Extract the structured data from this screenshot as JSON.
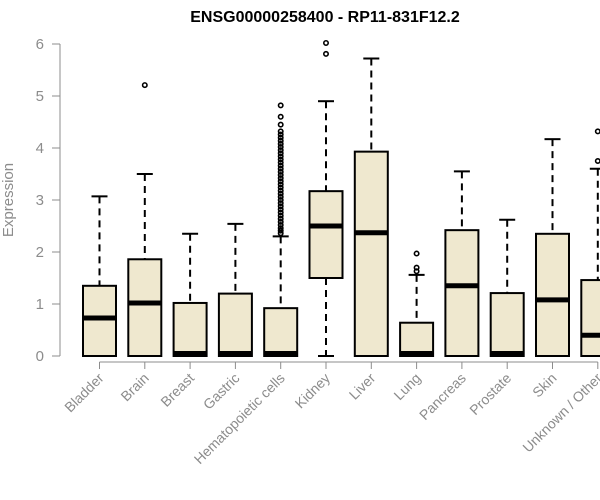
{
  "chart_data": {
    "type": "boxplot",
    "title": "ENSG00000258400 - RP11-831F12.2",
    "xlabel": "",
    "ylabel": "Expression",
    "ylim": [
      0,
      6
    ],
    "yticks": [
      0,
      1,
      2,
      3,
      4,
      5,
      6
    ],
    "grid": false,
    "colors": {
      "box_fill": "#efe8cf",
      "box_stroke": "#000000",
      "axis": "#8c8c8c"
    },
    "categories": [
      "Bladder",
      "Brain",
      "Breast",
      "Gastric",
      "Hematopoietic cells",
      "Kidney",
      "Liver",
      "Lung",
      "Pancreas",
      "Prostate",
      "Skin",
      "Unknown / Other"
    ],
    "boxes": [
      {
        "min": 0,
        "q1": 0,
        "median": 0.73,
        "q3": 1.35,
        "max": 3.07,
        "outliers": []
      },
      {
        "min": 0,
        "q1": 0,
        "median": 1.02,
        "q3": 1.86,
        "max": 3.5,
        "outliers": [
          5.21
        ]
      },
      {
        "min": 0,
        "q1": 0,
        "median": 0,
        "q3": 1.02,
        "max": 2.35,
        "outliers": []
      },
      {
        "min": 0,
        "q1": 0,
        "median": 0,
        "q3": 1.2,
        "max": 2.54,
        "outliers": []
      },
      {
        "min": 0,
        "q1": 0,
        "median": 0,
        "q3": 0.92,
        "max": 2.3,
        "outliers": [
          2.36,
          2.41,
          2.46,
          2.52,
          2.58,
          2.64,
          2.7,
          2.76,
          2.82,
          2.88,
          2.94,
          3.0,
          3.06,
          3.12,
          3.18,
          3.24,
          3.3,
          3.36,
          3.42,
          3.48,
          3.54,
          3.6,
          3.66,
          3.72,
          3.78,
          3.84,
          3.9,
          3.96,
          4.02,
          4.08,
          4.14,
          4.2,
          4.26,
          4.32,
          4.45,
          4.6,
          4.82
        ]
      },
      {
        "min": 0,
        "q1": 1.5,
        "median": 2.5,
        "q3": 3.17,
        "max": 4.9,
        "outliers": [
          5.81,
          6.02
        ]
      },
      {
        "min": 0,
        "q1": 0,
        "median": 2.37,
        "q3": 3.93,
        "max": 5.72,
        "outliers": []
      },
      {
        "min": 0,
        "q1": 0,
        "median": 0,
        "q3": 0.64,
        "max": 1.56,
        "outliers": [
          1.63,
          1.7,
          1.97
        ]
      },
      {
        "min": 0,
        "q1": 0,
        "median": 1.35,
        "q3": 2.42,
        "max": 3.55,
        "outliers": []
      },
      {
        "min": 0,
        "q1": 0,
        "median": 0,
        "q3": 1.21,
        "max": 2.62,
        "outliers": []
      },
      {
        "min": 0,
        "q1": 0,
        "median": 1.08,
        "q3": 2.35,
        "max": 4.17,
        "outliers": []
      },
      {
        "min": 0,
        "q1": 0,
        "median": 0.4,
        "q3": 1.46,
        "max": 3.6,
        "outliers": [
          3.75,
          4.32
        ]
      }
    ]
  }
}
